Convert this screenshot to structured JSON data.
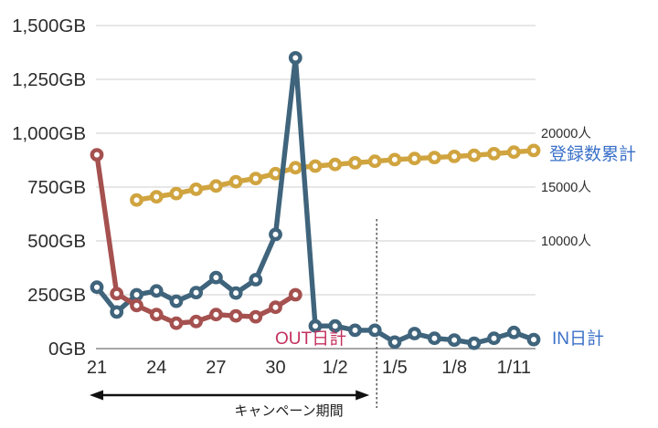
{
  "chart_data": {
    "type": "line",
    "title": "",
    "categories": [
      "12/21",
      "12/22",
      "12/23",
      "12/24",
      "12/25",
      "12/26",
      "12/27",
      "12/28",
      "12/29",
      "12/30",
      "12/31",
      "1/1",
      "1/2",
      "1/3",
      "1/4",
      "1/5",
      "1/6",
      "1/7",
      "1/8",
      "1/9",
      "1/10",
      "1/11",
      "1/12"
    ],
    "x_tick_labels": [
      {
        "index": 0,
        "label": "21"
      },
      {
        "index": 3,
        "label": "24"
      },
      {
        "index": 6,
        "label": "27"
      },
      {
        "index": 9,
        "label": "30"
      },
      {
        "index": 12,
        "label": "1/2"
      },
      {
        "index": 15,
        "label": "1/5"
      },
      {
        "index": 18,
        "label": "1/8"
      },
      {
        "index": 21,
        "label": "1/11"
      }
    ],
    "left_axis": {
      "unit": "GB",
      "min": 0,
      "max": 1500,
      "tick_step": 250,
      "tick_labels": [
        "0GB",
        "250GB",
        "500GB",
        "750GB",
        "1,000GB",
        "1,250GB",
        "1,500GB"
      ]
    },
    "right_axis": {
      "unit": "人",
      "per_left_unit": 20,
      "tick_labels": [
        {
          "value": 20000,
          "label": "20000人"
        },
        {
          "value": 15000,
          "label": "15000人"
        },
        {
          "value": 10000,
          "label": "10000人"
        }
      ]
    },
    "series": [
      {
        "id": "registrations-cumulative",
        "name": "登録数累計",
        "axis": "right",
        "color": "#D0A43F",
        "label_color": "#3A70C8",
        "values": [
          null,
          null,
          13800,
          14100,
          14400,
          14800,
          15100,
          15500,
          15800,
          16250,
          16800,
          16950,
          17100,
          17250,
          17400,
          17550,
          17650,
          17750,
          17850,
          17950,
          18100,
          18250,
          18400
        ]
      },
      {
        "id": "in-daily",
        "name": "IN日計",
        "axis": "left",
        "color": "#3F647C",
        "label_color": "#3A70C8",
        "values": [
          285,
          170,
          250,
          268,
          220,
          260,
          330,
          258,
          320,
          530,
          1350,
          105,
          105,
          85,
          85,
          30,
          70,
          48,
          40,
          25,
          48,
          75,
          42
        ]
      },
      {
        "id": "out-daily",
        "name": "OUT日計",
        "axis": "left",
        "color": "#A5514F",
        "label_color": "#C4305F",
        "values": [
          900,
          255,
          200,
          158,
          118,
          126,
          158,
          152,
          148,
          192,
          250,
          null,
          null,
          null,
          null,
          null,
          null,
          null,
          null,
          null,
          null,
          null,
          null
        ]
      }
    ],
    "annotations": {
      "dotted_line_category": "1/4",
      "campaign": {
        "label": "キャンペーン期間",
        "from_category": "12/21",
        "to_category": "1/4"
      }
    },
    "grid_color": "#cfcfcf",
    "axis_line_color": "#8a8a8a",
    "text_color": "#2d2d2d",
    "legend_position": "inline-labels",
    "grid": true
  }
}
